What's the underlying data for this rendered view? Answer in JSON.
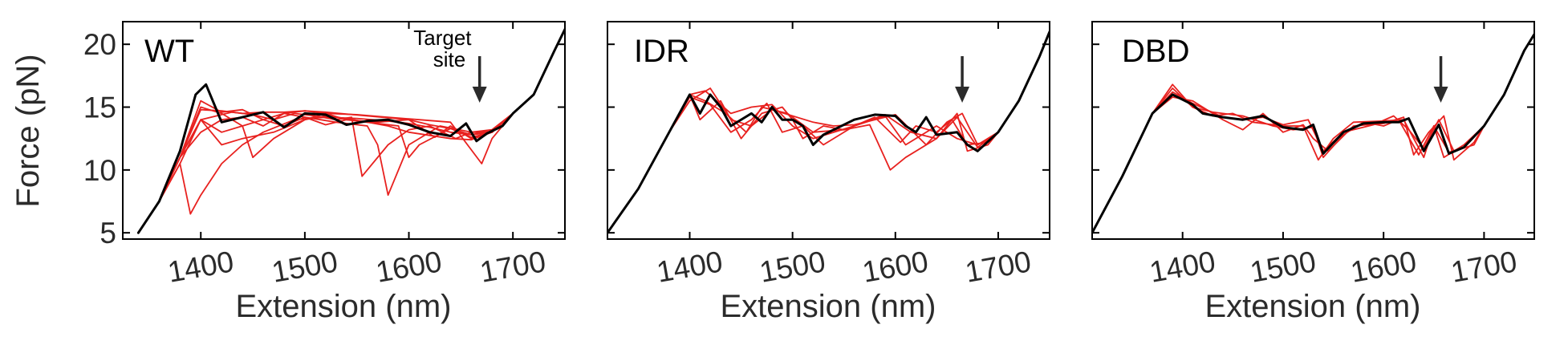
{
  "figure": {
    "ylabel": "Force (pN)",
    "xlabel": "Extension (nm)",
    "annotation": "Target site",
    "colors": {
      "traces": "#e8211f",
      "mean": "#000000"
    }
  },
  "chart_data": [
    {
      "type": "line",
      "title": "WT",
      "xlabel": "Extension (nm)",
      "ylabel": "Force (pN)",
      "xlim": [
        1325,
        1750
      ],
      "ylim": [
        4.5,
        21.8
      ],
      "xticks": [
        1400,
        1500,
        1600,
        1700
      ],
      "yticks": [
        5,
        10,
        15,
        20
      ],
      "target_site_x": 1668,
      "annotation": "Target site",
      "mean": {
        "name": "average",
        "x": [
          1340,
          1360,
          1380,
          1395,
          1405,
          1420,
          1440,
          1460,
          1480,
          1500,
          1520,
          1540,
          1560,
          1580,
          1600,
          1620,
          1640,
          1655,
          1665,
          1675,
          1690,
          1700,
          1720,
          1740,
          1750
        ],
        "y": [
          5,
          7.5,
          11.5,
          16,
          16.8,
          13.8,
          14.2,
          14.6,
          13.4,
          14.5,
          14.4,
          13.6,
          13.9,
          14.0,
          13.6,
          13.0,
          12.7,
          13.7,
          12.3,
          12.9,
          13.5,
          14.5,
          16.0,
          19.5,
          21.2
        ]
      },
      "series": [
        {
          "name": "trace 1",
          "x": [
            1340,
            1360,
            1380,
            1390,
            1400,
            1420,
            1440,
            1460,
            1490,
            1520,
            1550,
            1580,
            1600,
            1620,
            1640,
            1660,
            1680,
            1700,
            1720,
            1740,
            1750
          ],
          "y": [
            5,
            7.5,
            10.5,
            6.5,
            8,
            10.5,
            12,
            13,
            14,
            14.2,
            14.1,
            13.9,
            13.7,
            13.4,
            13,
            12.8,
            13,
            14.5,
            16,
            19.5,
            21.2
          ]
        },
        {
          "name": "trace 2",
          "x": [
            1340,
            1360,
            1380,
            1400,
            1420,
            1440,
            1460,
            1480,
            1500,
            1530,
            1560,
            1570,
            1580,
            1600,
            1630,
            1660,
            1680,
            1700,
            1720,
            1740,
            1750
          ],
          "y": [
            5,
            7.5,
            10.5,
            14,
            13,
            13.5,
            14,
            13.5,
            14.2,
            13.8,
            13.5,
            12,
            8,
            12,
            13.5,
            13,
            13,
            14.5,
            16,
            19.5,
            21.2
          ]
        },
        {
          "name": "trace 3",
          "x": [
            1340,
            1360,
            1380,
            1400,
            1430,
            1450,
            1470,
            1490,
            1510,
            1530,
            1545,
            1555,
            1580,
            1600,
            1620,
            1645,
            1660,
            1680,
            1700,
            1720,
            1740,
            1750
          ],
          "y": [
            5,
            7.5,
            11,
            14,
            14.6,
            14.4,
            14,
            14.5,
            14.3,
            14,
            14.2,
            9.5,
            12,
            13.2,
            13.5,
            12.5,
            13,
            13.2,
            14.5,
            16,
            19.5,
            21.2
          ]
        },
        {
          "name": "trace 4",
          "x": [
            1340,
            1360,
            1380,
            1400,
            1420,
            1440,
            1450,
            1470,
            1500,
            1520,
            1540,
            1570,
            1600,
            1625,
            1640,
            1660,
            1680,
            1700,
            1720,
            1740,
            1750
          ],
          "y": [
            5,
            7.5,
            11,
            15,
            14.5,
            13.5,
            11,
            12.5,
            14,
            14.5,
            14,
            13.8,
            14,
            12.6,
            13.5,
            12.5,
            13,
            14.5,
            16,
            19.5,
            21.2
          ]
        },
        {
          "name": "trace 5",
          "x": [
            1340,
            1360,
            1380,
            1400,
            1420,
            1440,
            1460,
            1480,
            1500,
            1520,
            1560,
            1600,
            1620,
            1640,
            1660,
            1680,
            1700,
            1720,
            1740,
            1750
          ],
          "y": [
            5,
            7.5,
            11,
            15.5,
            14.6,
            14.8,
            14,
            14.5,
            14.7,
            14.6,
            14.3,
            14.0,
            13.6,
            13.3,
            12.8,
            13.2,
            14.5,
            16,
            19.5,
            21.2
          ]
        },
        {
          "name": "trace 6",
          "x": [
            1340,
            1360,
            1380,
            1400,
            1420,
            1440,
            1470,
            1500,
            1520,
            1540,
            1560,
            1590,
            1600,
            1610,
            1640,
            1660,
            1680,
            1700,
            1720,
            1740,
            1750
          ],
          "y": [
            5,
            7.5,
            11,
            14,
            12,
            12.5,
            13,
            14,
            14.3,
            14.1,
            13.8,
            13.5,
            11,
            12,
            13.3,
            12.6,
            13,
            14.5,
            16,
            19.5,
            21.2
          ]
        },
        {
          "name": "trace 7",
          "x": [
            1340,
            1360,
            1380,
            1400,
            1420,
            1440,
            1460,
            1480,
            1500,
            1520,
            1540,
            1560,
            1580,
            1600,
            1640,
            1660,
            1680,
            1700,
            1720,
            1740,
            1750
          ],
          "y": [
            5,
            7.5,
            11,
            13,
            14,
            14.2,
            13.5,
            14.5,
            14.2,
            13.6,
            14,
            13.8,
            13.5,
            13,
            12.5,
            12.4,
            13,
            14.5,
            16,
            19.5,
            21.2
          ]
        },
        {
          "name": "trace 8",
          "x": [
            1340,
            1360,
            1380,
            1400,
            1420,
            1440,
            1460,
            1480,
            1500,
            1520,
            1550,
            1580,
            1610,
            1640,
            1670,
            1680,
            1700,
            1720,
            1740,
            1750
          ],
          "y": [
            5,
            7.5,
            11,
            14.8,
            14.7,
            14.5,
            14.6,
            14.6,
            14.7,
            14.5,
            14.4,
            14.2,
            14.0,
            13.8,
            10.5,
            12.5,
            14.5,
            16,
            19.5,
            21.2
          ]
        }
      ]
    },
    {
      "type": "line",
      "title": "IDR",
      "xlabel": "Extension (nm)",
      "ylabel": "Force (pN)",
      "xlim": [
        1320,
        1750
      ],
      "ylim": [
        4.5,
        21.8
      ],
      "xticks": [
        1400,
        1500,
        1600,
        1700
      ],
      "yticks": [
        5,
        10,
        15,
        20
      ],
      "target_site_x": 1665,
      "mean": {
        "name": "average",
        "x": [
          1320,
          1350,
          1380,
          1400,
          1410,
          1420,
          1430,
          1440,
          1460,
          1470,
          1480,
          1490,
          1500,
          1510,
          1520,
          1530,
          1560,
          1580,
          1600,
          1610,
          1620,
          1630,
          1640,
          1660,
          1670,
          1680,
          1700,
          1720,
          1740,
          1750
        ],
        "y": [
          5,
          8.5,
          13,
          16,
          14.5,
          16,
          15,
          13.5,
          14.5,
          13.8,
          15,
          14,
          14,
          13.5,
          12,
          12.8,
          14,
          14.4,
          14.3,
          13.5,
          13,
          14.2,
          12.8,
          13,
          12,
          11.5,
          13,
          15.5,
          19,
          21
        ]
      },
      "series": [
        {
          "name": "trace 1",
          "x": [
            1320,
            1350,
            1380,
            1400,
            1415,
            1440,
            1460,
            1480,
            1500,
            1520,
            1560,
            1590,
            1610,
            1640,
            1660,
            1680,
            1700,
            1720,
            1740,
            1750
          ],
          "y": [
            5,
            8.5,
            13,
            16,
            16.3,
            14.5,
            15,
            15.2,
            13.5,
            12.5,
            13.5,
            14.3,
            12,
            13.5,
            12.5,
            12,
            13,
            15.5,
            19,
            21
          ]
        },
        {
          "name": "trace 2",
          "x": [
            1320,
            1350,
            1380,
            1400,
            1410,
            1430,
            1450,
            1470,
            1490,
            1500,
            1510,
            1530,
            1550,
            1575,
            1595,
            1610,
            1640,
            1660,
            1670,
            1690,
            1700,
            1720,
            1740,
            1750
          ],
          "y": [
            5,
            8.5,
            13,
            16,
            14,
            15.5,
            12.5,
            14.5,
            15,
            14,
            12.5,
            13.5,
            13.2,
            13.6,
            10,
            11,
            12.5,
            14.5,
            11.5,
            12,
            13,
            15.5,
            19,
            21
          ]
        },
        {
          "name": "trace 3",
          "x": [
            1320,
            1350,
            1380,
            1400,
            1420,
            1440,
            1460,
            1480,
            1500,
            1520,
            1540,
            1560,
            1580,
            1600,
            1630,
            1650,
            1665,
            1680,
            1700,
            1720,
            1740,
            1750
          ],
          "y": [
            5,
            8.5,
            13,
            15.5,
            16.5,
            14,
            13.5,
            14.8,
            14.3,
            13.8,
            13.5,
            13.6,
            14,
            14.4,
            12,
            13.8,
            14.5,
            12,
            13,
            15.5,
            19,
            21
          ]
        },
        {
          "name": "trace 4",
          "x": [
            1320,
            1350,
            1380,
            1400,
            1420,
            1440,
            1460,
            1475,
            1490,
            1510,
            1530,
            1560,
            1580,
            1605,
            1620,
            1640,
            1655,
            1670,
            1690,
            1700,
            1720,
            1740,
            1750
          ],
          "y": [
            5,
            8.5,
            13,
            15.8,
            15.2,
            13,
            14,
            15.3,
            13,
            13.5,
            12,
            13.5,
            14.2,
            12.2,
            13.5,
            13,
            14,
            12,
            12.2,
            13,
            15.5,
            19,
            21
          ]
        },
        {
          "name": "trace 5",
          "x": [
            1320,
            1350,
            1380,
            1400,
            1415,
            1435,
            1455,
            1470,
            1495,
            1520,
            1550,
            1570,
            1590,
            1615,
            1640,
            1660,
            1680,
            1700,
            1720,
            1740,
            1750
          ],
          "y": [
            5,
            8.5,
            13,
            16,
            15.5,
            14.5,
            13,
            15,
            14.5,
            13,
            13.2,
            13.8,
            14.4,
            13,
            12.5,
            14.2,
            11.8,
            13,
            15.5,
            19,
            21
          ]
        }
      ]
    },
    {
      "type": "line",
      "title": "DBD",
      "xlabel": "Extension (nm)",
      "ylabel": "Force (pN)",
      "xlim": [
        1310,
        1750
      ],
      "ylim": [
        4.5,
        21.8
      ],
      "xticks": [
        1400,
        1500,
        1600,
        1700
      ],
      "yticks": [
        5,
        10,
        15,
        20
      ],
      "target_site_x": 1657,
      "mean": {
        "name": "average",
        "x": [
          1310,
          1340,
          1370,
          1390,
          1410,
          1420,
          1440,
          1460,
          1480,
          1500,
          1520,
          1530,
          1540,
          1560,
          1580,
          1600,
          1615,
          1625,
          1640,
          1655,
          1665,
          1680,
          1700,
          1720,
          1740,
          1750
        ],
        "y": [
          5,
          9.5,
          14.5,
          16,
          15.2,
          14.5,
          14.2,
          14,
          14.3,
          13.4,
          13.2,
          13.6,
          11.3,
          13,
          13.7,
          13.8,
          13.8,
          14.1,
          11.5,
          13.6,
          11.3,
          11.8,
          13.5,
          16,
          19.5,
          20.8
        ]
      },
      "series": [
        {
          "name": "trace 1",
          "x": [
            1310,
            1340,
            1370,
            1390,
            1410,
            1430,
            1450,
            1470,
            1500,
            1520,
            1535,
            1550,
            1570,
            1600,
            1620,
            1640,
            1650,
            1660,
            1680,
            1700,
            1720,
            1740,
            1750
          ],
          "y": [
            5,
            9.5,
            14.5,
            16.8,
            15,
            14.3,
            14.5,
            13.8,
            13.5,
            13.5,
            10.8,
            12.5,
            13.8,
            13.9,
            14,
            11,
            13.5,
            11,
            12,
            13.5,
            16,
            19.5,
            20.8
          ]
        },
        {
          "name": "trace 2",
          "x": [
            1310,
            1340,
            1370,
            1390,
            1410,
            1440,
            1460,
            1480,
            1500,
            1520,
            1530,
            1545,
            1570,
            1600,
            1620,
            1630,
            1645,
            1660,
            1670,
            1690,
            1700,
            1720,
            1740,
            1750
          ],
          "y": [
            5,
            9.5,
            14.5,
            15.8,
            15.5,
            14,
            13.2,
            14.5,
            13,
            13.6,
            12.5,
            11.5,
            13.5,
            13.7,
            14.2,
            11.2,
            13,
            14.3,
            10.8,
            12.2,
            13.5,
            16,
            19.5,
            20.8
          ]
        },
        {
          "name": "trace 3",
          "x": [
            1310,
            1340,
            1370,
            1390,
            1410,
            1440,
            1460,
            1480,
            1500,
            1525,
            1540,
            1560,
            1590,
            1610,
            1625,
            1640,
            1655,
            1670,
            1690,
            1700,
            1720,
            1740,
            1750
          ],
          "y": [
            5,
            9.5,
            14.5,
            16.2,
            15.3,
            14.2,
            14,
            14.2,
            13.6,
            14,
            11.5,
            13,
            13.6,
            14.3,
            13.2,
            11.7,
            14,
            11.5,
            12,
            13.5,
            16,
            19.5,
            20.8
          ]
        },
        {
          "name": "trace 4",
          "x": [
            1310,
            1340,
            1370,
            1390,
            1410,
            1430,
            1460,
            1490,
            1510,
            1530,
            1540,
            1560,
            1580,
            1600,
            1615,
            1635,
            1650,
            1665,
            1680,
            1700,
            1720,
            1740,
            1750
          ],
          "y": [
            5,
            9.5,
            14.5,
            16.5,
            15,
            14.6,
            14.3,
            13.5,
            13.2,
            13.4,
            11,
            12.8,
            13.8,
            13.5,
            14,
            11.2,
            13.5,
            11.4,
            11.8,
            13.5,
            16,
            19.5,
            20.8
          ]
        }
      ]
    }
  ]
}
